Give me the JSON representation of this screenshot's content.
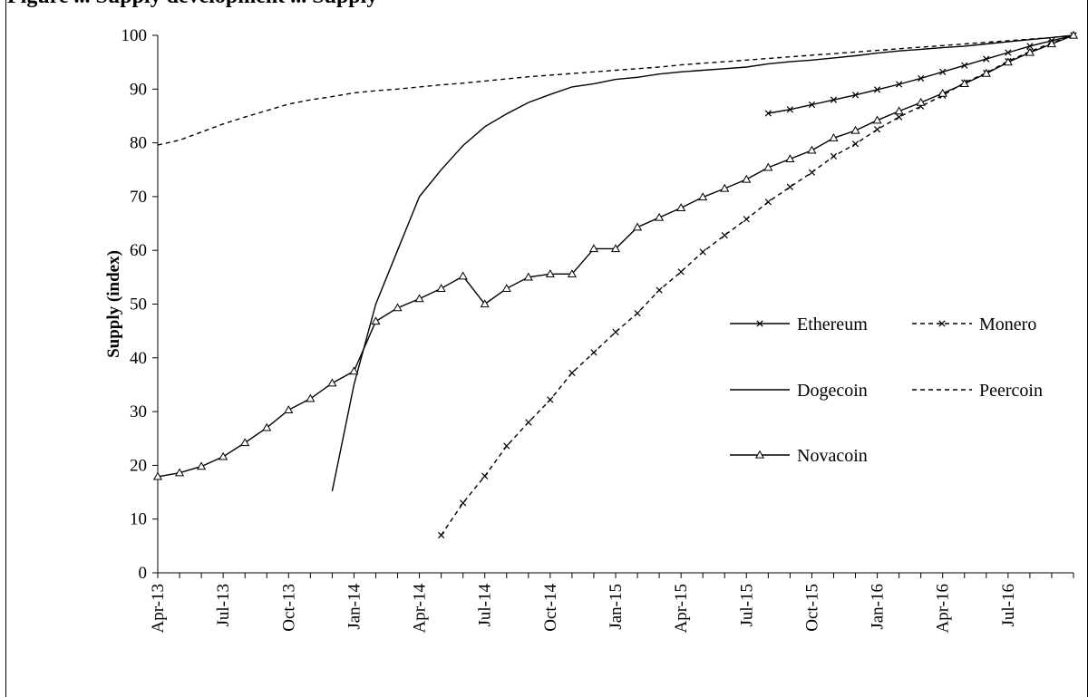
{
  "caption": "Figure ... Supply development ... Supply",
  "chart_data": {
    "type": "line",
    "ylabel": "Supply (index)",
    "xlabel": "",
    "ylim": [
      0,
      100
    ],
    "yticks": [
      0,
      10,
      20,
      30,
      40,
      50,
      60,
      70,
      80,
      90,
      100
    ],
    "xlim": [
      "2013-04",
      "2016-10"
    ],
    "x_tick_labels": [
      "Apr-13",
      "Jul-13",
      "Oct-13",
      "Jan-14",
      "Apr-14",
      "Jul-14",
      "Oct-14",
      "Jan-15",
      "Apr-15",
      "Jul-15",
      "Oct-15",
      "Jan-16",
      "Apr-16",
      "Jul-16"
    ],
    "grid": false,
    "legend_position": "right",
    "series": [
      {
        "name": "Ethereum",
        "style": "solid",
        "marker": "x",
        "points": [
          [
            "2015-08",
            85.5
          ],
          [
            "2015-09",
            86.2
          ],
          [
            "2015-10",
            87.1
          ],
          [
            "2015-11",
            88.0
          ],
          [
            "2015-12",
            88.9
          ],
          [
            "2016-01",
            89.9
          ],
          [
            "2016-02",
            90.9
          ],
          [
            "2016-03",
            92.0
          ],
          [
            "2016-04",
            93.2
          ],
          [
            "2016-05",
            94.4
          ],
          [
            "2016-06",
            95.6
          ],
          [
            "2016-07",
            96.8
          ],
          [
            "2016-08",
            98.0
          ],
          [
            "2016-09",
            99.0
          ],
          [
            "2016-10",
            100.0
          ]
        ]
      },
      {
        "name": "Monero",
        "style": "dashed",
        "marker": "x",
        "points": [
          [
            "2014-05",
            7.0
          ],
          [
            "2014-06",
            13.0
          ],
          [
            "2014-07",
            18.0
          ],
          [
            "2014-08",
            23.6
          ],
          [
            "2014-09",
            28.0
          ],
          [
            "2014-10",
            32.2
          ],
          [
            "2014-11",
            37.2
          ],
          [
            "2014-12",
            41.0
          ],
          [
            "2015-01",
            44.8
          ],
          [
            "2015-02",
            48.3
          ],
          [
            "2015-03",
            52.6
          ],
          [
            "2015-04",
            56.0
          ],
          [
            "2015-05",
            59.7
          ],
          [
            "2015-06",
            62.8
          ],
          [
            "2015-07",
            65.8
          ],
          [
            "2015-08",
            69.0
          ],
          [
            "2015-09",
            71.8
          ],
          [
            "2015-10",
            74.5
          ],
          [
            "2015-11",
            77.5
          ],
          [
            "2015-12",
            79.8
          ],
          [
            "2016-01",
            82.5
          ],
          [
            "2016-02",
            84.8
          ],
          [
            "2016-03",
            86.8
          ],
          [
            "2016-04",
            88.8
          ],
          [
            "2016-05",
            91.2
          ],
          [
            "2016-06",
            93.0
          ],
          [
            "2016-07",
            95.2
          ],
          [
            "2016-08",
            97.0
          ],
          [
            "2016-09",
            98.6
          ],
          [
            "2016-10",
            100.0
          ]
        ]
      },
      {
        "name": "Dogecoin",
        "style": "solid",
        "marker": "none",
        "points": [
          [
            "2013-12",
            15.2
          ],
          [
            "2014-01",
            35.0
          ],
          [
            "2014-02",
            50.0
          ],
          [
            "2014-03",
            60.0
          ],
          [
            "2014-04",
            70.0
          ],
          [
            "2014-05",
            75.0
          ],
          [
            "2014-06",
            79.5
          ],
          [
            "2014-07",
            83.0
          ],
          [
            "2014-08",
            85.4
          ],
          [
            "2014-09",
            87.5
          ],
          [
            "2014-10",
            89.0
          ],
          [
            "2014-11",
            90.4
          ],
          [
            "2014-12",
            91.0
          ],
          [
            "2015-01",
            91.8
          ],
          [
            "2015-02",
            92.2
          ],
          [
            "2015-03",
            92.8
          ],
          [
            "2015-04",
            93.2
          ],
          [
            "2015-05",
            93.5
          ],
          [
            "2015-06",
            93.8
          ],
          [
            "2015-07",
            94.1
          ],
          [
            "2015-08",
            94.7
          ],
          [
            "2015-09",
            95.1
          ],
          [
            "2015-10",
            95.4
          ],
          [
            "2015-11",
            95.8
          ],
          [
            "2015-12",
            96.2
          ],
          [
            "2016-01",
            96.7
          ],
          [
            "2016-02",
            97.1
          ],
          [
            "2016-03",
            97.4
          ],
          [
            "2016-04",
            97.7
          ],
          [
            "2016-05",
            98.0
          ],
          [
            "2016-06",
            98.4
          ],
          [
            "2016-07",
            98.8
          ],
          [
            "2016-08",
            99.2
          ],
          [
            "2016-09",
            99.6
          ],
          [
            "2016-10",
            100.0
          ]
        ]
      },
      {
        "name": "Peercoin",
        "style": "dashed",
        "marker": "none",
        "points": [
          [
            "2013-04",
            79.6
          ],
          [
            "2013-05",
            80.5
          ],
          [
            "2013-06",
            82.0
          ],
          [
            "2013-07",
            83.5
          ],
          [
            "2013-08",
            84.8
          ],
          [
            "2013-09",
            86.0
          ],
          [
            "2013-10",
            87.2
          ],
          [
            "2013-11",
            88.0
          ],
          [
            "2013-12",
            88.6
          ],
          [
            "2014-01",
            89.3
          ],
          [
            "2014-02",
            89.7
          ],
          [
            "2014-03",
            90.0
          ],
          [
            "2014-04",
            90.4
          ],
          [
            "2014-05",
            90.8
          ],
          [
            "2014-06",
            91.1
          ],
          [
            "2014-07",
            91.5
          ],
          [
            "2014-08",
            91.9
          ],
          [
            "2014-09",
            92.3
          ],
          [
            "2014-10",
            92.6
          ],
          [
            "2014-11",
            92.9
          ],
          [
            "2014-12",
            93.2
          ],
          [
            "2015-01",
            93.5
          ],
          [
            "2015-02",
            93.8
          ],
          [
            "2015-03",
            94.1
          ],
          [
            "2015-04",
            94.5
          ],
          [
            "2015-05",
            94.8
          ],
          [
            "2015-06",
            95.1
          ],
          [
            "2015-07",
            95.4
          ],
          [
            "2015-08",
            95.7
          ],
          [
            "2015-09",
            96.0
          ],
          [
            "2015-10",
            96.3
          ],
          [
            "2015-11",
            96.6
          ],
          [
            "2015-12",
            96.9
          ],
          [
            "2016-01",
            97.2
          ],
          [
            "2016-02",
            97.5
          ],
          [
            "2016-03",
            97.8
          ],
          [
            "2016-04",
            98.1
          ],
          [
            "2016-05",
            98.4
          ],
          [
            "2016-06",
            98.7
          ],
          [
            "2016-07",
            99.0
          ],
          [
            "2016-08",
            99.3
          ],
          [
            "2016-09",
            99.6
          ],
          [
            "2016-10",
            100.0
          ]
        ]
      },
      {
        "name": "Novacoin",
        "style": "solid",
        "marker": "triangle",
        "points": [
          [
            "2013-04",
            17.9
          ],
          [
            "2013-05",
            18.6
          ],
          [
            "2013-06",
            19.8
          ],
          [
            "2013-07",
            21.6
          ],
          [
            "2013-08",
            24.2
          ],
          [
            "2013-09",
            27.0
          ],
          [
            "2013-10",
            30.3
          ],
          [
            "2013-11",
            32.4
          ],
          [
            "2013-12",
            35.3
          ],
          [
            "2014-01",
            37.5
          ],
          [
            "2014-02",
            46.8
          ],
          [
            "2014-03",
            49.3
          ],
          [
            "2014-04",
            51.0
          ],
          [
            "2014-05",
            52.9
          ],
          [
            "2014-06",
            55.2
          ],
          [
            "2014-07",
            50.0
          ],
          [
            "2014-08",
            52.9
          ],
          [
            "2014-09",
            55.0
          ],
          [
            "2014-10",
            55.6
          ],
          [
            "2014-11",
            55.6
          ],
          [
            "2014-12",
            60.3
          ],
          [
            "2015-01",
            60.3
          ],
          [
            "2015-02",
            64.3
          ],
          [
            "2015-03",
            66.1
          ],
          [
            "2015-04",
            67.9
          ],
          [
            "2015-05",
            69.9
          ],
          [
            "2015-06",
            71.5
          ],
          [
            "2015-07",
            73.2
          ],
          [
            "2015-08",
            75.4
          ],
          [
            "2015-09",
            77.0
          ],
          [
            "2015-10",
            78.6
          ],
          [
            "2015-11",
            80.9
          ],
          [
            "2015-12",
            82.3
          ],
          [
            "2016-01",
            84.2
          ],
          [
            "2016-02",
            85.9
          ],
          [
            "2016-03",
            87.5
          ],
          [
            "2016-04",
            89.2
          ],
          [
            "2016-05",
            91.0
          ],
          [
            "2016-06",
            92.9
          ],
          [
            "2016-07",
            95.0
          ],
          [
            "2016-08",
            96.8
          ],
          [
            "2016-09",
            98.4
          ],
          [
            "2016-10",
            100.0
          ]
        ]
      }
    ]
  }
}
